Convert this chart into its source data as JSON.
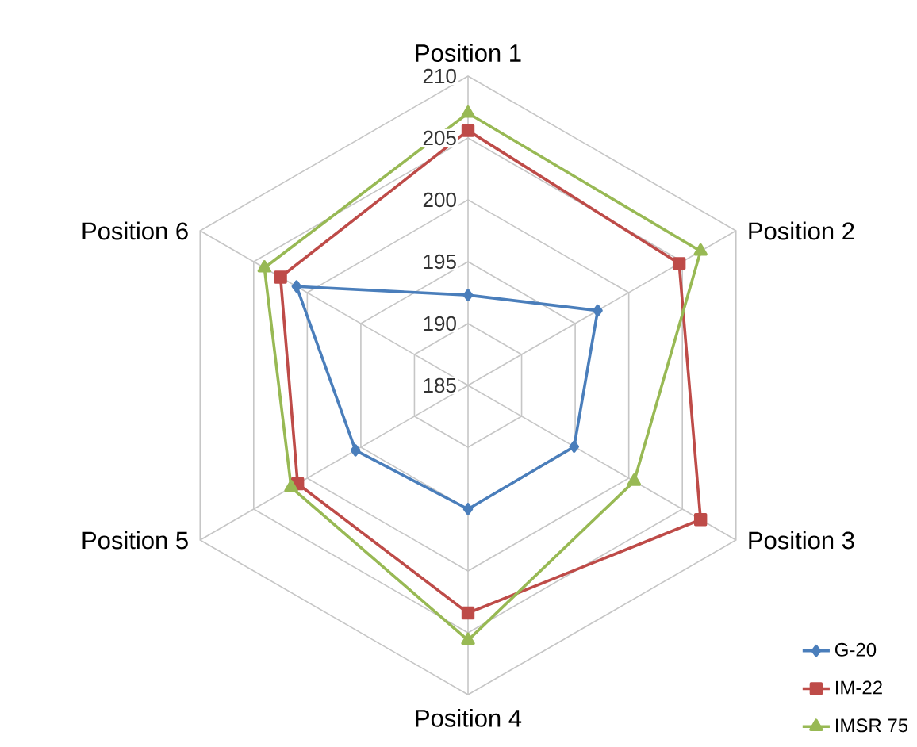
{
  "chart_data": {
    "type": "radar",
    "categories": [
      "Position 1",
      "Position 2",
      "Position 3",
      "Position 4",
      "Position 5",
      "Position 6"
    ],
    "ylim": [
      185,
      210
    ],
    "yticks": [
      185,
      190,
      195,
      200,
      205,
      210
    ],
    "grid": true,
    "legend": "bottom right",
    "series": [
      {
        "name": "G-20",
        "color": "#4a7ebb",
        "marker": "diamond",
        "values": [
          192.3,
          197.1,
          194.9,
          195,
          195.5,
          201
        ]
      },
      {
        "name": "IM-22",
        "color": "#be4b48",
        "marker": "square",
        "values": [
          205.6,
          204.7,
          206.7,
          203.4,
          200.9,
          202.5
        ]
      },
      {
        "name": "IMSR 75",
        "color": "#98b954",
        "marker": "triangle",
        "values": [
          207,
          206.7,
          200.5,
          205.6,
          201.5,
          204
        ]
      }
    ]
  }
}
